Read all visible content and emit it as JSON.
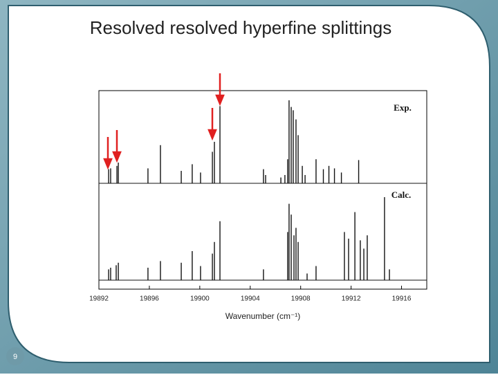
{
  "slide_number": "9",
  "chart_data": {
    "type": "stick",
    "title": "Resolved resolved hyperfine splittings",
    "x_label": "Wavenumber (cm⁻¹)",
    "xlim": [
      19892,
      19918
    ],
    "xticks": [
      19892,
      19896,
      19900,
      19904,
      19908,
      19912,
      19916
    ],
    "series": [
      {
        "name": "Exp.",
        "color": "#111111",
        "x": [
          19892.77,
          19892.93,
          19893.43,
          19893.54,
          19895.89,
          19896.88,
          19898.53,
          19899.4,
          19900.06,
          19901.0,
          19901.16,
          19901.6,
          19905.05,
          19905.22,
          19906.43,
          19906.75,
          19906.97,
          19907.08,
          19907.25,
          19907.41,
          19907.63,
          19907.8,
          19908.13,
          19908.35,
          19909.22,
          19909.8,
          19910.24,
          19910.68,
          19911.23,
          19912.6
        ],
        "values": [
          0.17,
          0.18,
          0.21,
          0.25,
          0.18,
          0.46,
          0.15,
          0.23,
          0.13,
          0.38,
          0.5,
          0.93,
          0.17,
          0.1,
          0.07,
          0.1,
          0.29,
          1.0,
          0.92,
          0.88,
          0.77,
          0.58,
          0.21,
          0.1,
          0.29,
          0.17,
          0.21,
          0.18,
          0.13,
          0.28
        ]
      },
      {
        "name": "Calc.",
        "color": "#111111",
        "x": [
          19892.77,
          19892.93,
          19893.37,
          19893.54,
          19895.89,
          19896.88,
          19898.53,
          19899.4,
          19900.06,
          19901.0,
          19901.16,
          19901.6,
          19905.05,
          19906.97,
          19907.08,
          19907.25,
          19907.47,
          19907.63,
          19907.8,
          19908.51,
          19909.22,
          19911.47,
          19911.8,
          19912.3,
          19912.73,
          19913.01,
          19913.28,
          19914.65,
          19915.04
        ],
        "values": [
          0.13,
          0.15,
          0.18,
          0.21,
          0.15,
          0.23,
          0.21,
          0.35,
          0.17,
          0.32,
          0.46,
          0.71,
          0.13,
          0.58,
          0.92,
          0.79,
          0.54,
          0.63,
          0.46,
          0.08,
          0.17,
          0.58,
          0.5,
          0.82,
          0.48,
          0.38,
          0.54,
          1.0,
          0.13
        ]
      }
    ]
  }
}
